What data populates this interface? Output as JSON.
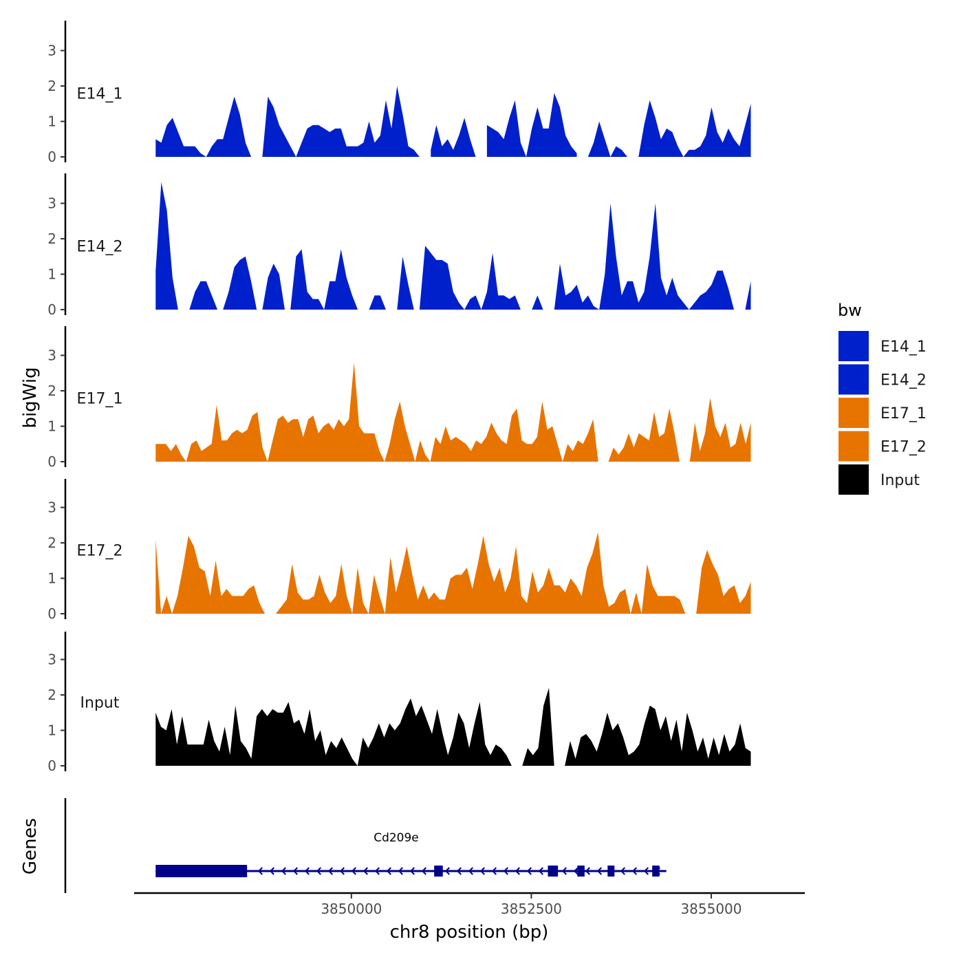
{
  "chart_data": {
    "type": "area",
    "ylabel": "bigWig",
    "xlabel": "chr8 position (bp)",
    "genes_label": "Genes",
    "ylim": [
      0,
      3.8
    ],
    "yticks": [
      0,
      1,
      2,
      3
    ],
    "ytick_labels": [
      "0",
      "1",
      "2",
      "3"
    ],
    "x_range": [
      3847000,
      3856300
    ],
    "xticks": [
      3850000,
      3852500,
      3855000
    ],
    "xtick_labels": [
      "3850000",
      "3852500",
      "3855000"
    ],
    "data_x_range": [
      3847280,
      3855550
    ],
    "legend": {
      "title": "bw",
      "position": "right",
      "entries": [
        {
          "label": "E14_1",
          "color": "#0020CC"
        },
        {
          "label": "E14_2",
          "color": "#0020CC"
        },
        {
          "label": "E17_1",
          "color": "#E87400"
        },
        {
          "label": "E17_2",
          "color": "#E87400"
        },
        {
          "label": "Input",
          "color": "#000000"
        }
      ]
    },
    "series": [
      {
        "name": "E14_1",
        "color": "#0020CC",
        "values": [
          0.5,
          0.4,
          0.9,
          1.1,
          0.7,
          0.3,
          0.3,
          0.3,
          0.1,
          0.0,
          0.3,
          0.5,
          0.5,
          1.1,
          1.7,
          1.2,
          0.4,
          0.0,
          null,
          0.0,
          1.7,
          1.4,
          0.9,
          0.6,
          0.3,
          0.0,
          0.4,
          0.8,
          0.9,
          0.9,
          0.8,
          0.7,
          0.8,
          0.8,
          0.3,
          0.3,
          0.3,
          0.4,
          1.0,
          0.4,
          0.6,
          1.6,
          0.8,
          2.0,
          1.2,
          0.3,
          0.2,
          0.0,
          null,
          0.2,
          0.9,
          0.3,
          0.5,
          0.2,
          0.6,
          1.1,
          0.5,
          0.0,
          null,
          0.9,
          0.8,
          0.7,
          0.5,
          1.1,
          1.6,
          0.4,
          0.0,
          0.8,
          1.4,
          0.8,
          0.8,
          1.8,
          1.4,
          0.6,
          0.3,
          0.1,
          null,
          0.0,
          0.4,
          1.0,
          0.5,
          0.0,
          0.3,
          0.2,
          0.0,
          null,
          0.0,
          0.9,
          1.6,
          1.1,
          0.5,
          0.8,
          0.7,
          0.3,
          0.0,
          0.2,
          0.2,
          0.3,
          0.6,
          1.4,
          0.7,
          0.4,
          0.8,
          0.5,
          0.3,
          0.9,
          1.5
        ]
      },
      {
        "name": "E14_2",
        "color": "#0020CC",
        "values": [
          1.1,
          3.6,
          2.8,
          0.9,
          0.0,
          null,
          0.0,
          0.5,
          0.8,
          0.8,
          0.4,
          0.0,
          0.0,
          0.5,
          1.2,
          1.4,
          1.5,
          0.8,
          0.0,
          0.0,
          0.9,
          1.3,
          1.0,
          0.0,
          0.0,
          1.5,
          1.7,
          0.5,
          0.3,
          0.3,
          0.0,
          0.8,
          0.8,
          1.7,
          0.9,
          0.4,
          0.0,
          null,
          0.0,
          0.4,
          0.4,
          0.0,
          null,
          0.0,
          1.5,
          0.7,
          0.0,
          0.0,
          1.8,
          1.6,
          1.4,
          1.4,
          1.3,
          0.5,
          0.2,
          0.0,
          0.3,
          0.4,
          0.0,
          0.5,
          1.6,
          0.4,
          0.4,
          0.3,
          0.4,
          0.0,
          null,
          0.0,
          0.4,
          0.0,
          null,
          0.0,
          1.3,
          0.4,
          0.5,
          0.7,
          0.2,
          0.4,
          0.1,
          0.0,
          1.0,
          3.0,
          1.5,
          0.4,
          0.8,
          0.8,
          0.2,
          0.5,
          1.5,
          3.0,
          0.9,
          0.4,
          0.9,
          0.4,
          0.2,
          0.0,
          0.2,
          0.4,
          0.5,
          0.7,
          1.1,
          1.1,
          0.6,
          0.0,
          null,
          0.0,
          0.8
        ]
      },
      {
        "name": "E17_1",
        "color": "#E87400",
        "values": [
          0.5,
          0.5,
          0.5,
          0.3,
          0.5,
          0.2,
          0.0,
          0.5,
          0.6,
          0.3,
          0.4,
          0.5,
          1.6,
          0.6,
          0.6,
          0.8,
          0.9,
          0.8,
          0.9,
          1.3,
          1.4,
          0.4,
          0.0,
          0.6,
          1.2,
          1.3,
          1.1,
          1.2,
          1.2,
          0.7,
          1.2,
          1.3,
          0.8,
          1.0,
          1.1,
          0.9,
          1.2,
          1.0,
          1.2,
          2.8,
          1.0,
          0.8,
          0.8,
          0.8,
          0.3,
          0.0,
          0.5,
          1.2,
          1.7,
          1.0,
          0.5,
          0.0,
          0.6,
          0.2,
          0.0,
          0.7,
          0.5,
          1.0,
          0.6,
          0.7,
          0.6,
          0.5,
          0.3,
          0.6,
          0.5,
          0.7,
          1.1,
          0.8,
          0.6,
          0.5,
          1.3,
          1.5,
          0.6,
          0.5,
          0.5,
          0.7,
          1.7,
          0.9,
          1.0,
          0.5,
          0.0,
          0.5,
          0.3,
          0.6,
          0.5,
          0.8,
          1.2,
          0.0,
          null,
          0.0,
          0.4,
          0.2,
          0.4,
          0.8,
          0.4,
          0.8,
          0.7,
          0.6,
          1.4,
          0.7,
          0.8,
          1.5,
          0.8,
          0.0,
          null,
          0.0,
          1.1,
          0.3,
          0.8,
          1.8,
          1.0,
          0.7,
          1.1,
          0.4,
          0.5,
          1.1,
          0.5,
          1.1
        ]
      },
      {
        "name": "E17_2",
        "color": "#E87400",
        "values": [
          2.1,
          0.0,
          0.5,
          0.0,
          0.5,
          1.3,
          2.2,
          1.9,
          1.3,
          1.2,
          0.5,
          1.5,
          0.5,
          0.7,
          0.5,
          0.5,
          0.5,
          0.7,
          0.8,
          0.3,
          0.0,
          null,
          0.0,
          0.2,
          0.4,
          1.4,
          0.6,
          0.4,
          0.4,
          0.5,
          1.1,
          0.6,
          0.3,
          0.5,
          1.4,
          0.5,
          0.0,
          1.3,
          0.3,
          0.0,
          1.1,
          0.5,
          0.0,
          1.6,
          0.6,
          1.2,
          1.9,
          1.1,
          0.4,
          0.8,
          0.4,
          0.6,
          0.4,
          0.4,
          1.0,
          1.1,
          1.1,
          1.3,
          0.7,
          1.4,
          2.2,
          1.4,
          0.9,
          1.3,
          0.6,
          1.0,
          1.9,
          0.5,
          0.3,
          1.2,
          0.6,
          0.8,
          1.3,
          0.8,
          0.8,
          0.6,
          1.0,
          0.8,
          0.5,
          1.3,
          1.7,
          2.3,
          0.8,
          0.2,
          0.3,
          0.6,
          0.7,
          0.0,
          0.6,
          0.0,
          1.4,
          0.8,
          0.5,
          0.5,
          0.5,
          0.5,
          0.4,
          0.0,
          null,
          0.0,
          1.3,
          1.8,
          1.4,
          1.1,
          0.5,
          0.7,
          0.8,
          0.3,
          0.5,
          0.9
        ]
      },
      {
        "name": "Input",
        "color": "#000000",
        "values": [
          1.5,
          1.1,
          1.0,
          1.6,
          0.6,
          1.4,
          0.6,
          0.6,
          0.6,
          0.6,
          1.3,
          0.7,
          0.4,
          1.1,
          0.3,
          1.7,
          0.7,
          0.5,
          0.2,
          1.4,
          1.6,
          1.4,
          1.6,
          1.5,
          1.5,
          1.8,
          1.2,
          1.3,
          0.9,
          1.6,
          0.7,
          1.0,
          0.3,
          0.7,
          0.5,
          0.8,
          0.5,
          0.2,
          0.0,
          0.8,
          0.5,
          0.8,
          1.2,
          0.8,
          1.2,
          1.0,
          1.2,
          1.6,
          1.9,
          1.4,
          1.7,
          1.3,
          0.9,
          1.6,
          0.9,
          0.3,
          0.8,
          1.5,
          1.2,
          0.5,
          1.2,
          1.8,
          0.6,
          0.3,
          0.6,
          0.5,
          0.3,
          0.0,
          null,
          0.0,
          0.5,
          0.3,
          0.5,
          1.7,
          2.2,
          0.0,
          null,
          0.0,
          0.7,
          0.2,
          0.8,
          0.9,
          0.7,
          0.4,
          0.9,
          1.5,
          1.0,
          1.2,
          0.8,
          0.3,
          0.4,
          0.6,
          1.2,
          1.7,
          1.6,
          1.0,
          1.4,
          0.7,
          1.3,
          0.4,
          1.5,
          1.0,
          0.4,
          0.8,
          0.2,
          0.8,
          0.3,
          0.9,
          0.4,
          0.6,
          1.2,
          0.5,
          0.4
        ]
      }
    ],
    "gene": {
      "name": "Cd209e",
      "color": "#00008B",
      "strand": "-",
      "span": [
        3847280,
        3854280
      ],
      "exons": [
        [
          3847280,
          3848550
        ],
        [
          3851150,
          3851270
        ],
        [
          3852730,
          3852870
        ],
        [
          3853140,
          3853240
        ],
        [
          3853560,
          3853640
        ],
        [
          3854180,
          3854280
        ]
      ]
    }
  }
}
